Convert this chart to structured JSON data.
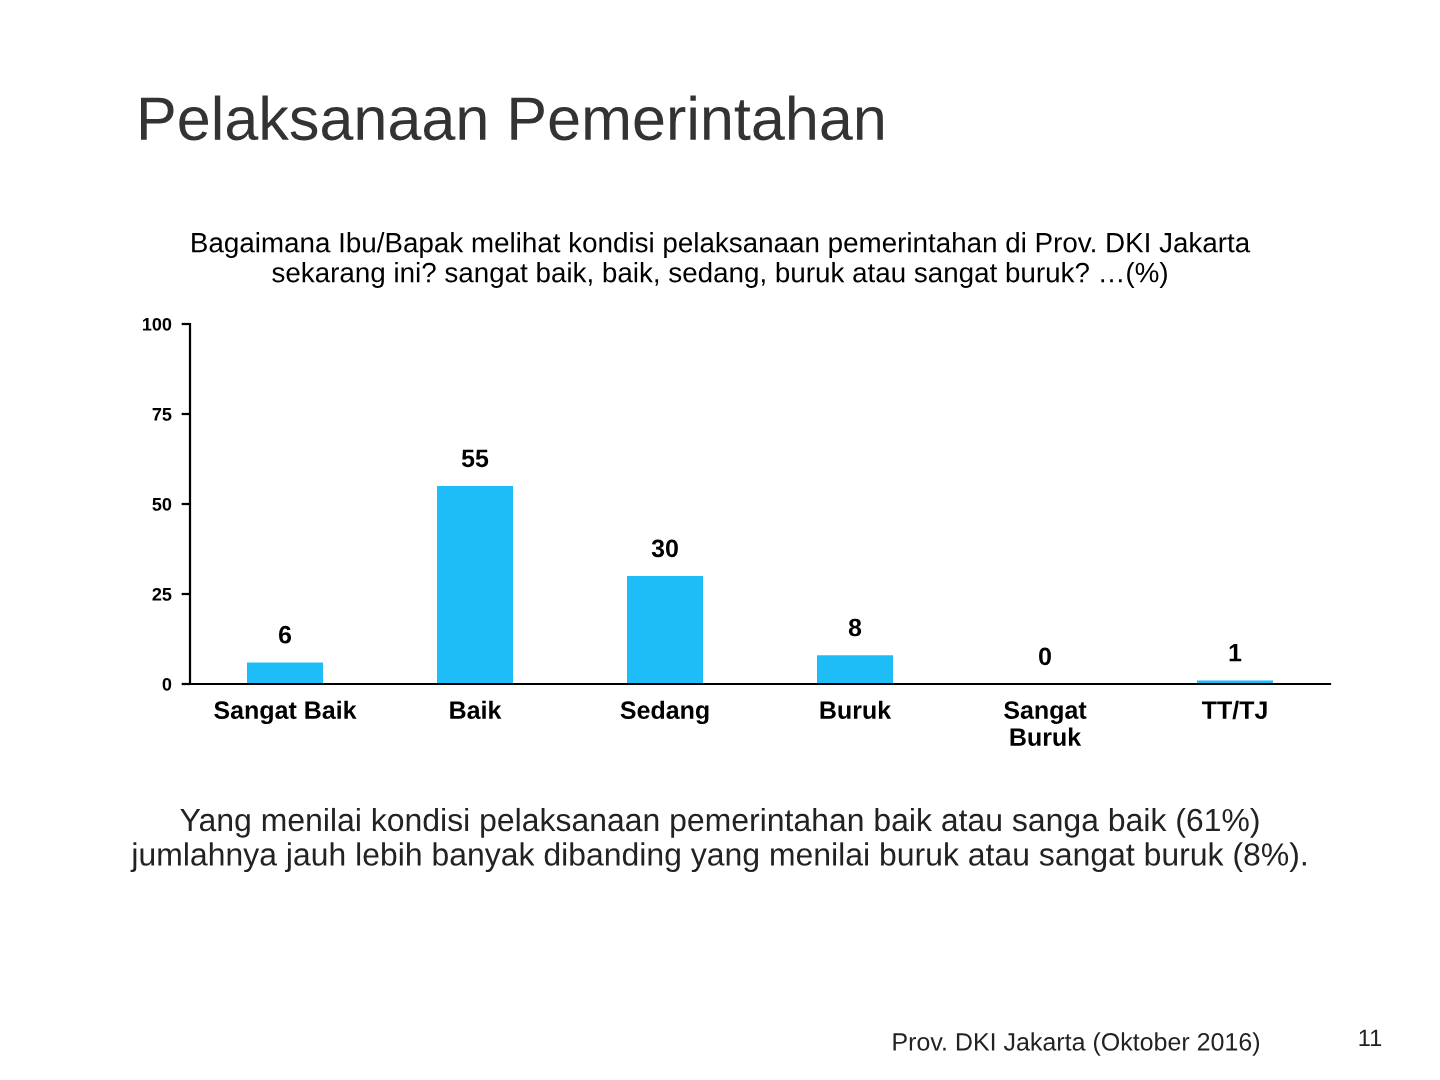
{
  "chart_data": {
    "type": "bar",
    "title": "Pelaksanaan Pemerintahan",
    "subtitle": "Bagaimana Ibu/Bapak melihat kondisi pelaksanaan pemerintahan di Prov. DKI Jakarta\nsekarang ini? sangat baik, baik, sedang, buruk atau sangat buruk? …(%)",
    "categories": [
      "Sangat Baik",
      "Baik",
      "Sedang",
      "Buruk",
      "Sangat\nBuruk",
      "TT/TJ"
    ],
    "values": [
      6,
      55,
      30,
      8,
      0,
      1
    ],
    "color": "#1fbdf7",
    "ylim": [
      0,
      100
    ],
    "yticks": [
      0,
      25,
      50,
      75,
      100
    ],
    "grid": false,
    "data_labels": true,
    "annotations": [
      "Yang menilai kondisi pelaksanaan pemerintahan baik atau sanga baik (61%)\njumlahnya jauh lebih banyak dibanding yang menilai buruk atau sangat buruk (8%).",
      "Prov. DKI Jakarta (Oktober 2016)",
      "11"
    ]
  }
}
